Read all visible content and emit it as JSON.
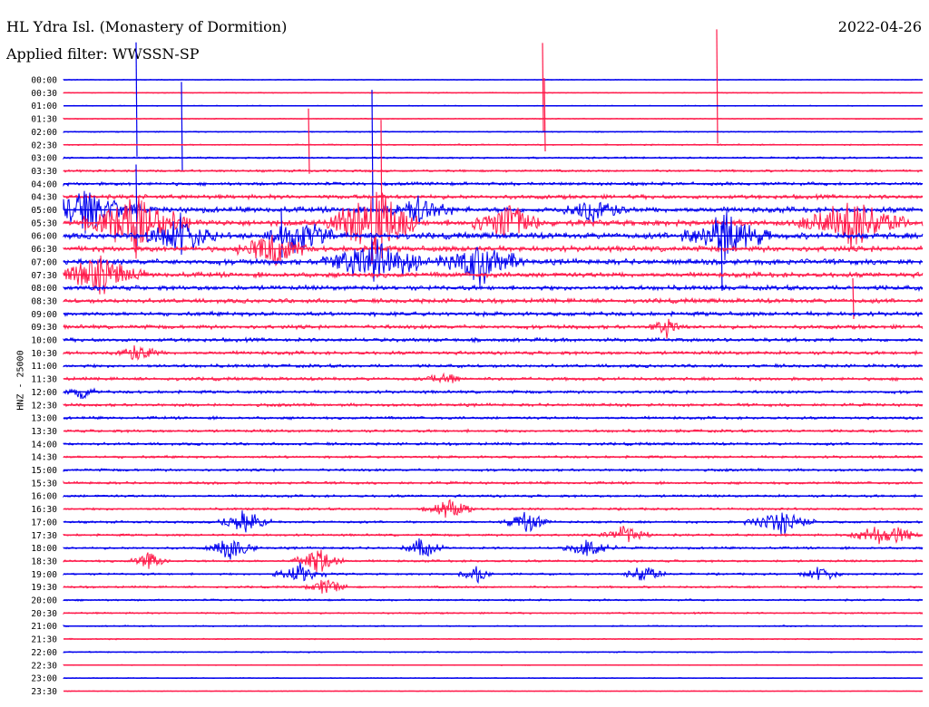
{
  "header": {
    "station": "HL Ydra Isl. (Monastery of Dormition)",
    "filter": "Applied filter: WWSSN-SP",
    "date": "2022-04-26",
    "channel_label": "HNZ - 25000"
  },
  "colors": {
    "blue": "#0000ee",
    "red": "#ff1a4a"
  },
  "chart_data": {
    "type": "helicorder",
    "title": "HL Ydra Isl. (Monastery of Dormition)",
    "ylabel": "HNZ - 25000",
    "row_labels": [
      "00:00",
      "00:30",
      "01:00",
      "01:30",
      "02:00",
      "02:30",
      "03:00",
      "03:30",
      "04:00",
      "04:30",
      "05:00",
      "05:30",
      "06:00",
      "06:30",
      "07:00",
      "07:30",
      "08:00",
      "08:30",
      "09:00",
      "09:30",
      "10:00",
      "10:30",
      "11:00",
      "11:30",
      "12:00",
      "12:30",
      "13:00",
      "13:30",
      "14:00",
      "14:30",
      "15:00",
      "15:30",
      "16:00",
      "16:30",
      "17:00",
      "17:30",
      "18:00",
      "18:30",
      "19:00",
      "19:30",
      "20:00",
      "20:30",
      "21:00",
      "21:30",
      "22:00",
      "22:30",
      "23:00",
      "23:30"
    ],
    "trace_colors_alternate": [
      "blue",
      "red"
    ],
    "noise_level_by_row": [
      0.3,
      0.4,
      0.4,
      0.4,
      0.5,
      0.6,
      0.8,
      1.0,
      1.4,
      1.8,
      2.4,
      2.6,
      2.6,
      2.4,
      2.4,
      2.2,
      2.0,
      1.9,
      1.8,
      1.7,
      1.6,
      1.5,
      1.4,
      1.4,
      1.3,
      1.3,
      1.2,
      1.2,
      1.2,
      1.1,
      1.1,
      1.1,
      1.1,
      1.0,
      1.0,
      1.0,
      1.0,
      1.0,
      0.9,
      0.9,
      0.8,
      0.7,
      0.6,
      0.5,
      0.5,
      0.4,
      0.4,
      0.3
    ]
  }
}
